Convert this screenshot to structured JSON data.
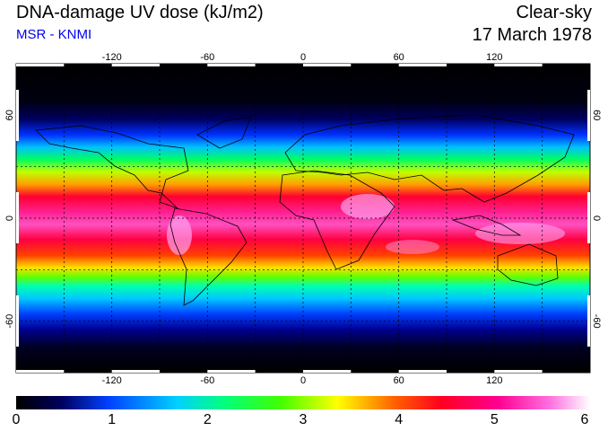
{
  "header": {
    "title": "DNA-damage UV dose (kJ/m2)",
    "source": "MSR - KNMI",
    "sky_condition": "Clear-sky",
    "date": "17 March 1978"
  },
  "map": {
    "lon_ticks": [
      "-120",
      "-60",
      "0",
      "60",
      "120"
    ],
    "lat_ticks": [
      "60",
      "0",
      "-60"
    ],
    "lon_range": [
      -180,
      180
    ],
    "lat_range": [
      -90,
      90
    ],
    "grid_spacing_deg": 30
  },
  "colorbar": {
    "labels": [
      "0",
      "1",
      "2",
      "3",
      "4",
      "5",
      "6"
    ],
    "min": 0,
    "max": 6,
    "colors": [
      "#000000",
      "#000070",
      "#0040ff",
      "#00ffff",
      "#00ff00",
      "#ffff00",
      "#ff0000",
      "#ff0060",
      "#ff40c0",
      "#ffe0ff"
    ]
  }
}
